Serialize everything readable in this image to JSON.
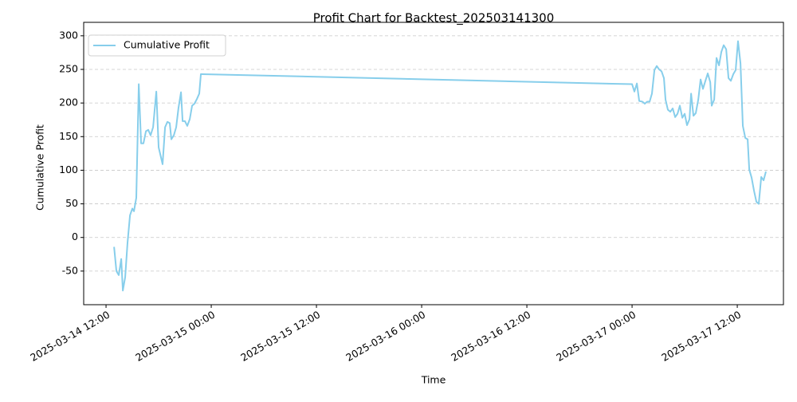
{
  "chart_data": {
    "type": "line",
    "title": "Profit Chart for Backtest_202503141300",
    "x_label": "Time",
    "y_label": "Cumulative Profit",
    "x": [
      "2025-03-14 12:55",
      "2025-03-14 13:11",
      "2025-03-14 13:27",
      "2025-03-14 13:44",
      "2025-03-14 13:55",
      "2025-03-14 14:11",
      "2025-03-14 14:27",
      "2025-03-14 14:44",
      "2025-03-14 15:00",
      "2025-03-14 15:11",
      "2025-03-14 15:27",
      "2025-03-14 15:44",
      "2025-03-14 16:00",
      "2025-03-14 16:16",
      "2025-03-14 16:33",
      "2025-03-14 16:49",
      "2025-03-14 17:05",
      "2025-03-14 17:22",
      "2025-03-14 17:44",
      "2025-03-14 18:00",
      "2025-03-14 18:27",
      "2025-03-14 18:44",
      "2025-03-14 19:00",
      "2025-03-14 19:16",
      "2025-03-14 19:27",
      "2025-03-14 19:44",
      "2025-03-14 20:00",
      "2025-03-14 20:16",
      "2025-03-14 20:33",
      "2025-03-14 20:44",
      "2025-03-14 21:00",
      "2025-03-14 21:16",
      "2025-03-14 21:33",
      "2025-03-14 21:49",
      "2025-03-14 22:05",
      "2025-03-14 22:22",
      "2025-03-14 22:38",
      "2025-03-14 22:49",
      "2025-03-17 00:00",
      "2025-03-17 00:16",
      "2025-03-17 00:33",
      "2025-03-17 00:49",
      "2025-03-17 01:11",
      "2025-03-17 01:27",
      "2025-03-17 01:44",
      "2025-03-17 02:00",
      "2025-03-17 02:16",
      "2025-03-17 02:33",
      "2025-03-17 02:49",
      "2025-03-17 03:05",
      "2025-03-17 03:22",
      "2025-03-17 03:38",
      "2025-03-17 03:49",
      "2025-03-17 04:05",
      "2025-03-17 04:22",
      "2025-03-17 04:38",
      "2025-03-17 04:55",
      "2025-03-17 05:11",
      "2025-03-17 05:27",
      "2025-03-17 05:44",
      "2025-03-17 06:00",
      "2025-03-17 06:16",
      "2025-03-17 06:33",
      "2025-03-17 06:44",
      "2025-03-17 07:00",
      "2025-03-17 07:16",
      "2025-03-17 07:33",
      "2025-03-17 07:49",
      "2025-03-17 08:05",
      "2025-03-17 08:22",
      "2025-03-17 08:38",
      "2025-03-17 08:55",
      "2025-03-17 09:05",
      "2025-03-17 09:22",
      "2025-03-17 09:38",
      "2025-03-17 09:55",
      "2025-03-17 10:11",
      "2025-03-17 10:27",
      "2025-03-17 10:44",
      "2025-03-17 11:00",
      "2025-03-17 11:16",
      "2025-03-17 11:33",
      "2025-03-17 11:49",
      "2025-03-17 12:05",
      "2025-03-17 12:22",
      "2025-03-17 12:38",
      "2025-03-17 12:55",
      "2025-03-17 13:11",
      "2025-03-17 13:22",
      "2025-03-17 13:38",
      "2025-03-17 13:55",
      "2025-03-17 14:11",
      "2025-03-17 14:27",
      "2025-03-17 14:44",
      "2025-03-17 15:00",
      "2025-03-17 15:16"
    ],
    "series": [
      {
        "name": "Cumulative Profit",
        "color": "#87ceeb",
        "values": [
          -14,
          -50,
          -56,
          -32,
          -79,
          -59,
          -8,
          33,
          43,
          39,
          59,
          228,
          140,
          140,
          158,
          160,
          152,
          164,
          217,
          134,
          109,
          164,
          172,
          170,
          146,
          152,
          164,
          193,
          216,
          173,
          173,
          166,
          176,
          196,
          199,
          206,
          214,
          243,
          228,
          217,
          229,
          203,
          202,
          199,
          202,
          202,
          214,
          249,
          255,
          250,
          247,
          237,
          205,
          190,
          187,
          192,
          179,
          184,
          196,
          178,
          184,
          167,
          176,
          214,
          181,
          185,
          205,
          235,
          221,
          233,
          244,
          231,
          196,
          205,
          267,
          256,
          276,
          286,
          280,
          237,
          233,
          243,
          249,
          292,
          259,
          166,
          148,
          146,
          101,
          89,
          69,
          53,
          50,
          90,
          85,
          98
        ]
      }
    ],
    "xlim": [
      "2025-03-14 09:27",
      "2025-03-17 17:16"
    ],
    "xticks": [
      "2025-03-14 12:00",
      "2025-03-15 00:00",
      "2025-03-15 12:00",
      "2025-03-16 00:00",
      "2025-03-16 12:00",
      "2025-03-17 00:00",
      "2025-03-17 12:00"
    ],
    "ylim": [
      -100,
      320
    ],
    "yticks": [
      -50,
      0,
      50,
      100,
      150,
      200,
      250,
      300
    ],
    "grid": "y",
    "legend": "upper left"
  }
}
